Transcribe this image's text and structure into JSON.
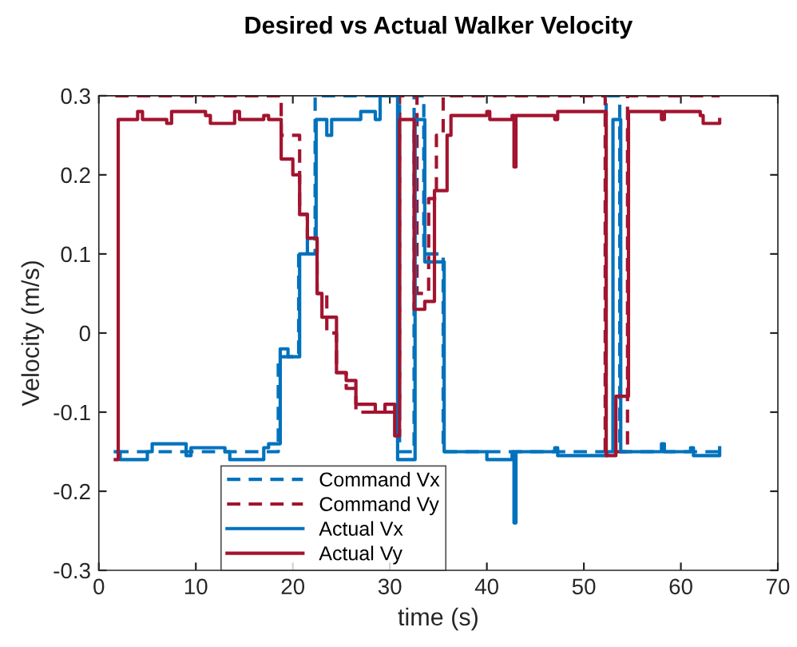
{
  "chart_data": {
    "type": "step",
    "title": "Desired vs Actual Walker Velocity",
    "xlabel": "time (s)",
    "ylabel": "Velocity (m/s)",
    "xlim": [
      0,
      70
    ],
    "ylim": [
      -0.3,
      0.3
    ],
    "xticks": [
      0,
      10,
      20,
      30,
      40,
      50,
      60,
      70
    ],
    "yticks": [
      -0.3,
      -0.2,
      -0.1,
      0,
      0.1,
      0.2,
      0.3
    ],
    "grid": false,
    "legend": "bottom left",
    "series": [
      {
        "name": "Command Vx",
        "color": "#0072bd",
        "line_style": "dashed",
        "x": [
          1.7,
          18.5,
          20.6,
          22.3,
          31.0,
          32.5,
          33.5,
          35.5,
          52.3,
          53.7,
          64.0
        ],
        "values": [
          -0.15,
          -0.03,
          0.1,
          0.3,
          -0.15,
          0.3,
          0.1,
          -0.15,
          0.3,
          -0.15,
          -0.15
        ]
      },
      {
        "name": "Command Vy",
        "color": "#a2142f",
        "line_style": "dashed",
        "x": [
          1.7,
          18.8,
          19.8,
          20.7,
          21.5,
          22.5,
          23.5,
          24.5,
          25.5,
          26.5,
          29.0,
          31.0,
          32.8,
          34.0,
          34.8,
          35.5,
          52.2,
          54.5,
          64.0
        ],
        "values": [
          0.3,
          0.25,
          0.25,
          0.15,
          0.12,
          0.05,
          0.0,
          -0.05,
          -0.07,
          -0.1,
          -0.1,
          0.3,
          0.05,
          0.17,
          0.25,
          0.3,
          -0.15,
          0.3,
          0.3
        ]
      },
      {
        "name": "Actual Vx",
        "color": "#0072bd",
        "line_style": "solid",
        "x": [
          1.7,
          2.2,
          5.0,
          5.5,
          9.0,
          9.5,
          13.0,
          13.5,
          17.0,
          17.5,
          18.7,
          19.5,
          20.7,
          21.5,
          22.4,
          23.5,
          24.0,
          27.0,
          28.5,
          29.0,
          30.8,
          32.6,
          33.6,
          35.6,
          40.0,
          42.6,
          42.8,
          43.0,
          47.0,
          47.3,
          52.4,
          53.0,
          53.8,
          58.0,
          58.3,
          61.0,
          61.3,
          64.0
        ],
        "values": [
          -0.15,
          -0.16,
          -0.15,
          -0.14,
          -0.155,
          -0.145,
          -0.15,
          -0.16,
          -0.145,
          -0.14,
          -0.02,
          -0.03,
          0.1,
          0.12,
          0.27,
          0.25,
          0.27,
          0.28,
          0.27,
          0.3,
          -0.16,
          0.27,
          0.09,
          -0.15,
          -0.16,
          -0.15,
          -0.24,
          -0.15,
          -0.145,
          -0.155,
          -0.15,
          0.27,
          -0.15,
          -0.14,
          -0.15,
          -0.145,
          -0.155,
          -0.145
        ]
      },
      {
        "name": "Actual Vy",
        "color": "#a2142f",
        "line_style": "solid",
        "x": [
          1.7,
          2.0,
          4.0,
          4.5,
          7.0,
          7.5,
          11.0,
          11.5,
          14.0,
          14.5,
          17.0,
          17.5,
          18.8,
          20.0,
          20.7,
          21.5,
          22.5,
          23.0,
          24.5,
          25.5,
          26.5,
          28.5,
          29.5,
          30.5,
          31.0,
          32.5,
          33.6,
          34.6,
          35.9,
          36.3,
          40.0,
          40.3,
          42.6,
          42.8,
          43.0,
          47.0,
          47.3,
          52.3,
          53.3,
          54.6,
          58.0,
          58.3,
          62.0,
          62.3,
          64.0
        ],
        "values": [
          -0.16,
          0.27,
          0.28,
          0.27,
          0.265,
          0.28,
          0.275,
          0.265,
          0.28,
          0.27,
          0.275,
          0.27,
          0.22,
          0.2,
          0.15,
          0.12,
          0.05,
          0.02,
          -0.05,
          -0.06,
          -0.09,
          -0.1,
          -0.09,
          -0.13,
          0.27,
          0.03,
          0.04,
          0.18,
          0.25,
          0.275,
          0.28,
          0.27,
          0.275,
          0.21,
          0.275,
          0.27,
          0.28,
          -0.155,
          -0.08,
          0.28,
          0.27,
          0.28,
          0.275,
          0.265,
          0.27
        ]
      }
    ]
  }
}
